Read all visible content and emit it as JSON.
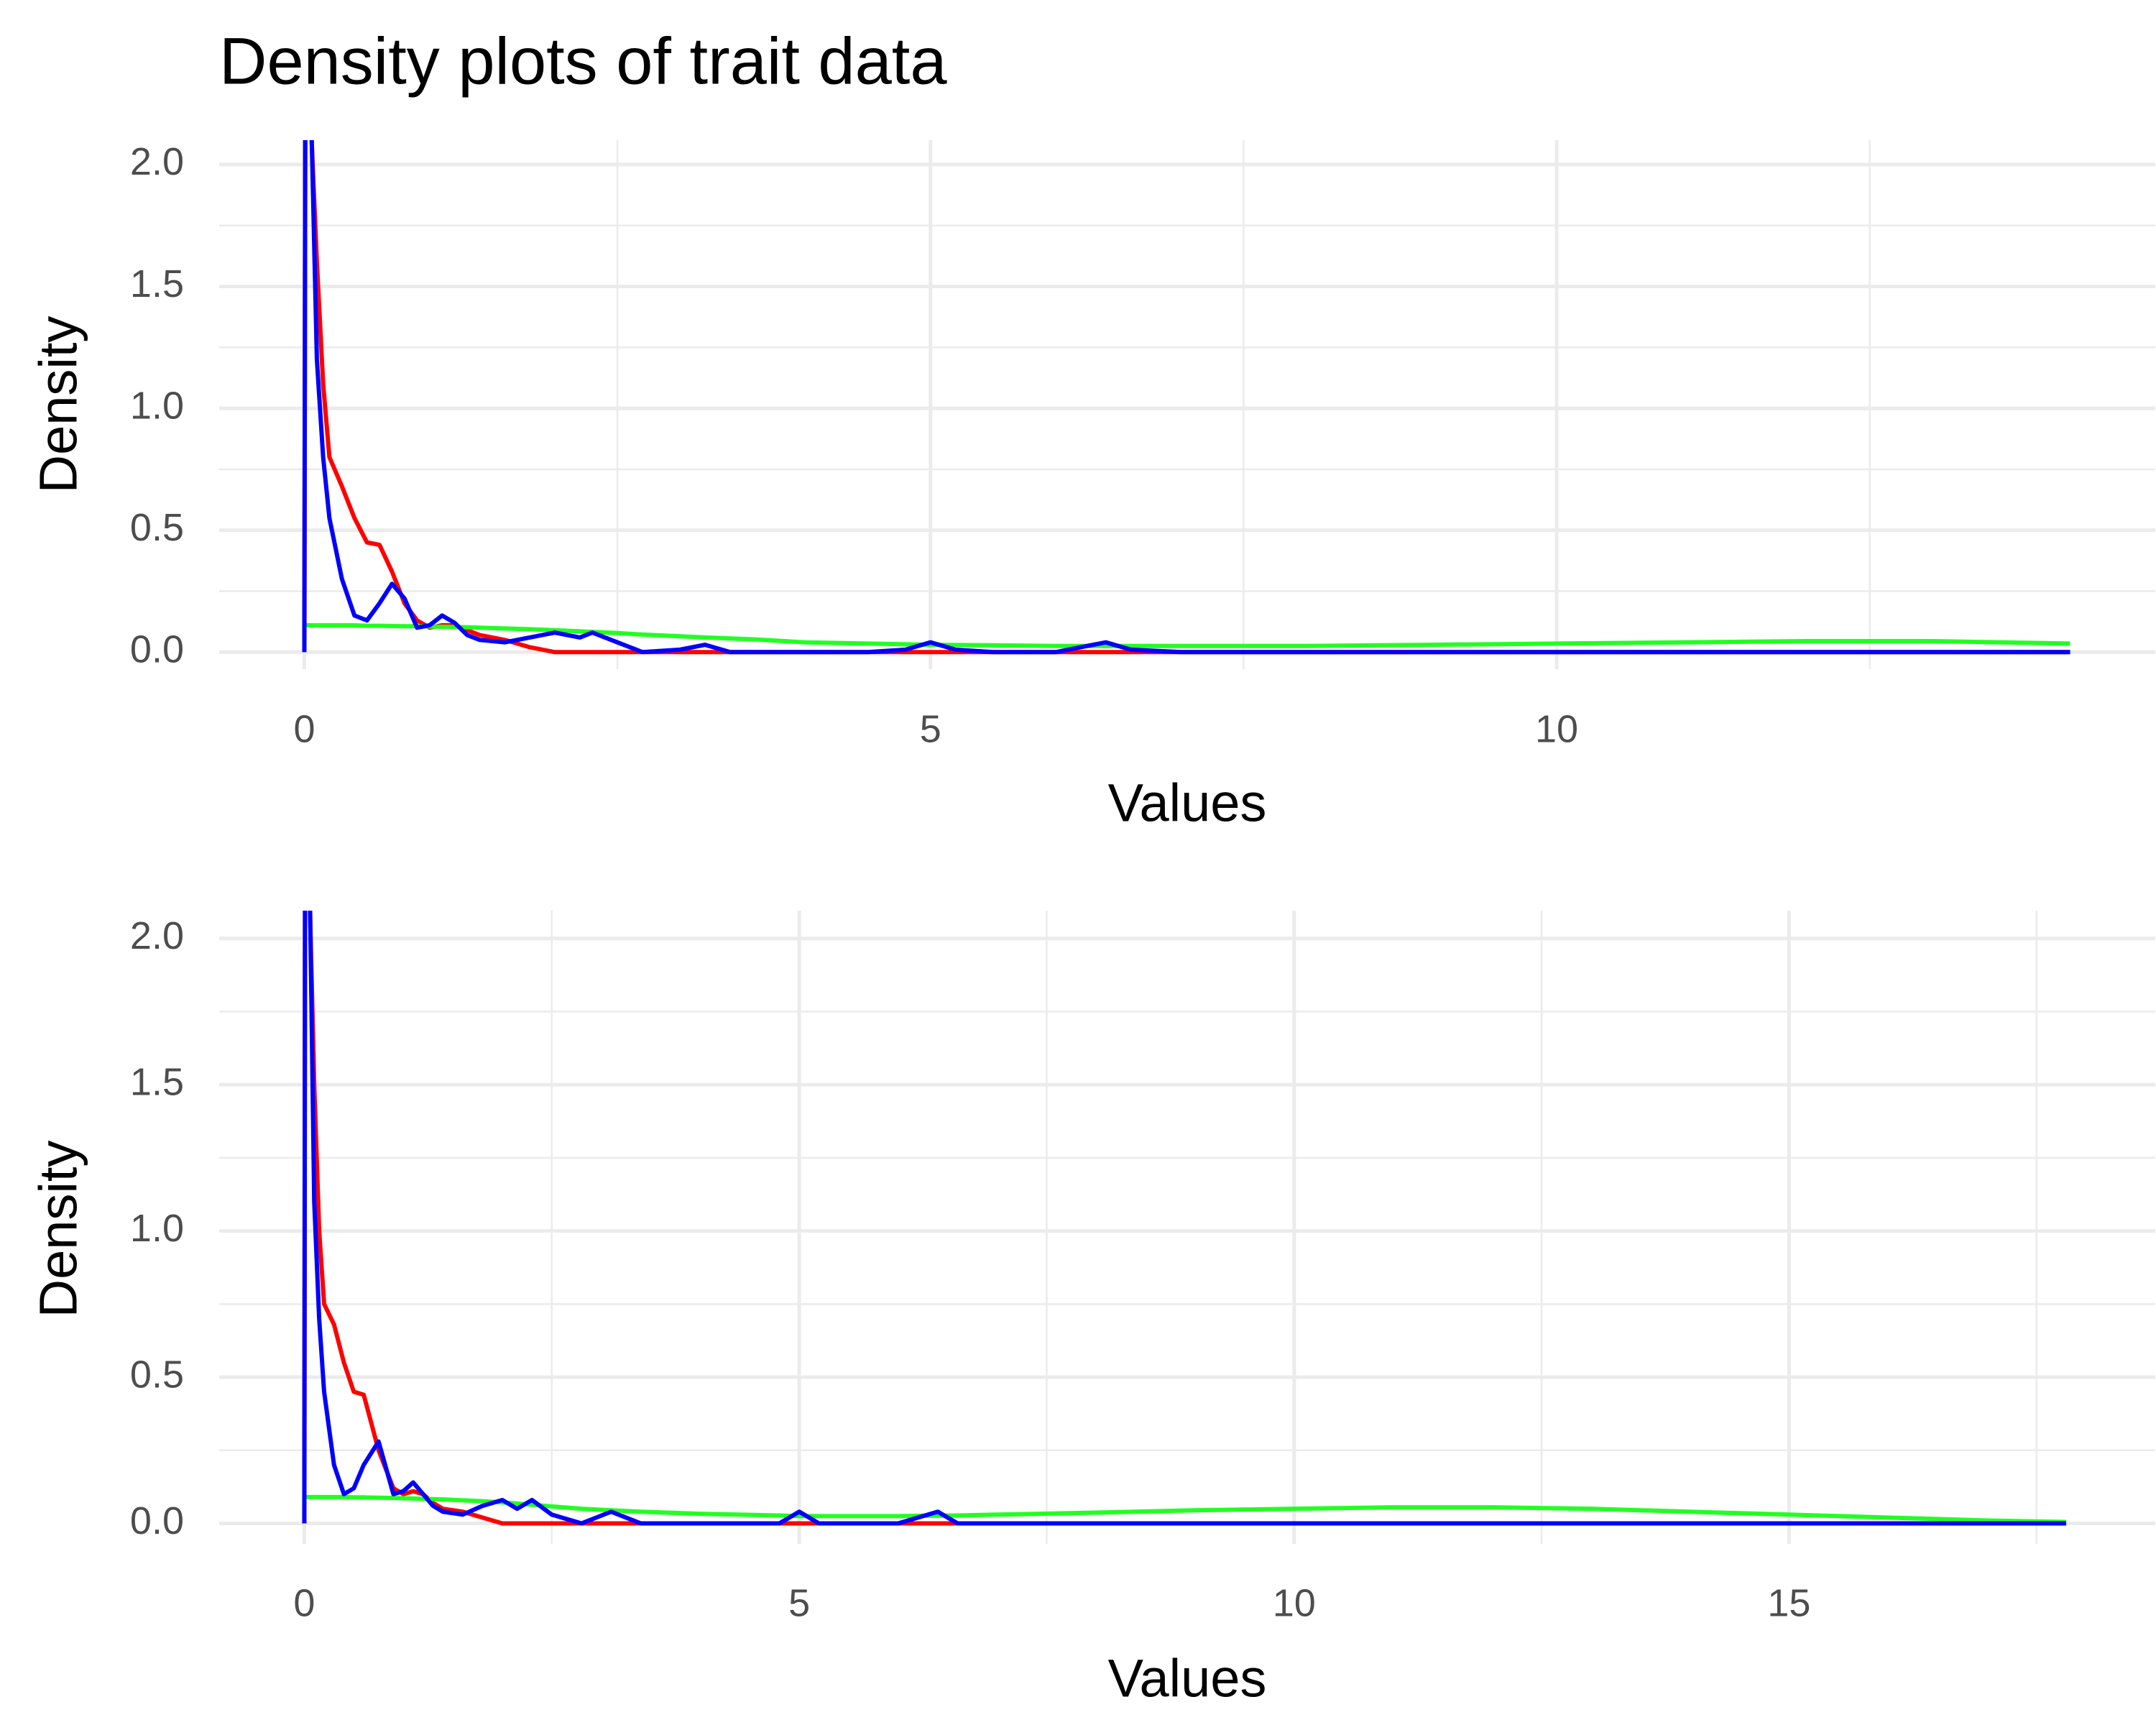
{
  "chart_data": [
    {
      "type": "line",
      "title": "Density plots of trait data",
      "x_label": "Values",
      "y_label": "Density",
      "xlim": [
        -0.68,
        14.78
      ],
      "ylim": [
        -0.07,
        2.1
      ],
      "xticks": [
        0,
        5,
        10
      ],
      "x_minor_ticks": [
        2.5,
        7.5,
        12.5
      ],
      "yticks": [
        {
          "value": 0,
          "label": "0.0"
        },
        0.5,
        {
          "value": 1,
          "label": "1.0"
        },
        1.5,
        {
          "value": 2,
          "label": "2.0"
        }
      ],
      "y_minor_ticks": [
        0.25,
        0.75,
        1.25,
        1.75
      ],
      "grid": true,
      "x": [
        0,
        0.01,
        0.05,
        0.1,
        0.15,
        0.2,
        0.3,
        0.4,
        0.5,
        0.6,
        0.7,
        0.8,
        0.9,
        1.0,
        1.1,
        1.2,
        1.3,
        1.4,
        1.6,
        1.8,
        2.0,
        2.2,
        2.3,
        2.5,
        2.7,
        3.0,
        3.2,
        3.4,
        3.6,
        4.0,
        4.5,
        4.8,
        5.0,
        5.2,
        5.5,
        6.0,
        6.2,
        6.4,
        6.6,
        7.0,
        8.0,
        9.0,
        10.0,
        11.0,
        12.0,
        13.0,
        14.1
      ],
      "series": [
        {
          "color": "#ff0000",
          "values": [
            0,
            3,
            2.2,
            1.6,
            1.1,
            0.8,
            0.68,
            0.55,
            0.45,
            0.44,
            0.33,
            0.2,
            0.13,
            0.1,
            0.11,
            0.11,
            0.09,
            0.07,
            0.05,
            0.02,
            0,
            0,
            0,
            0,
            0,
            0,
            0,
            0,
            0,
            0,
            0,
            0,
            0,
            0,
            0,
            0,
            0,
            0,
            0,
            0,
            0,
            0,
            0,
            0,
            0,
            0,
            0
          ]
        },
        {
          "color": "#22ff22",
          "values": [
            0.11,
            0.11,
            0.11,
            0.11,
            0.11,
            0.11,
            0.11,
            0.11,
            0.108,
            0.108,
            0.107,
            0.106,
            0.106,
            0.105,
            0.104,
            0.103,
            0.102,
            0.1,
            0.097,
            0.094,
            0.09,
            0.085,
            0.083,
            0.078,
            0.072,
            0.065,
            0.06,
            0.056,
            0.052,
            0.04,
            0.035,
            0.032,
            0.03,
            0.029,
            0.028,
            0.025,
            0.025,
            0.025,
            0.025,
            0.025,
            0.025,
            0.03,
            0.035,
            0.04,
            0.045,
            0.045,
            0.035
          ]
        },
        {
          "color": "#0000ff",
          "values": [
            0,
            3,
            2.3,
            1.2,
            0.8,
            0.55,
            0.3,
            0.15,
            0.13,
            0.2,
            0.28,
            0.22,
            0.1,
            0.11,
            0.15,
            0.12,
            0.07,
            0.05,
            0.04,
            0.06,
            0.08,
            0.06,
            0.08,
            0.04,
            0,
            0.01,
            0.03,
            0,
            0,
            0,
            0,
            0.01,
            0.04,
            0.01,
            0,
            0,
            0.02,
            0.04,
            0.01,
            0,
            0,
            0,
            0,
            0,
            0,
            0,
            0
          ]
        }
      ]
    },
    {
      "type": "line",
      "x_label": "Values",
      "y_label": "Density",
      "xlim": [
        -0.86,
        18.7
      ],
      "ylim": [
        -0.07,
        2.095
      ],
      "xticks": [
        0,
        5,
        10,
        15
      ],
      "x_minor_ticks": [
        2.5,
        7.5,
        12.5,
        17.5
      ],
      "yticks": [
        {
          "value": 0,
          "label": "0.0"
        },
        0.5,
        {
          "value": 1,
          "label": "1.0"
        },
        1.5,
        {
          "value": 2,
          "label": "2.0"
        }
      ],
      "y_minor_ticks": [
        0.25,
        0.75,
        1.25,
        1.75
      ],
      "grid": true,
      "x": [
        0,
        0.01,
        0.05,
        0.1,
        0.15,
        0.2,
        0.3,
        0.4,
        0.5,
        0.6,
        0.75,
        0.9,
        1.0,
        1.1,
        1.2,
        1.3,
        1.4,
        1.6,
        1.8,
        2.0,
        2.15,
        2.3,
        2.5,
        2.8,
        3.1,
        3.4,
        4.0,
        4.8,
        5.0,
        5.2,
        6.0,
        6.2,
        6.4,
        6.6,
        7,
        8,
        9,
        10,
        11,
        12,
        13,
        14,
        15,
        16,
        17,
        17.8
      ],
      "series": [
        {
          "color": "#ff0000",
          "values": [
            0,
            3,
            2.2,
            1.5,
            1.0,
            0.75,
            0.68,
            0.55,
            0.45,
            0.44,
            0.25,
            0.12,
            0.1,
            0.11,
            0.1,
            0.07,
            0.05,
            0.04,
            0.02,
            0,
            0,
            0,
            0,
            0,
            0,
            0,
            0,
            0,
            0,
            0,
            0,
            0,
            0,
            0,
            0,
            0,
            0,
            0,
            0,
            0,
            0,
            0,
            0,
            0,
            0,
            0
          ]
        },
        {
          "color": "#22ff22",
          "values": [
            0.09,
            0.09,
            0.09,
            0.09,
            0.09,
            0.09,
            0.09,
            0.09,
            0.089,
            0.089,
            0.088,
            0.087,
            0.086,
            0.085,
            0.084,
            0.083,
            0.082,
            0.079,
            0.076,
            0.072,
            0.068,
            0.064,
            0.058,
            0.05,
            0.045,
            0.04,
            0.033,
            0.027,
            0.025,
            0.025,
            0.025,
            0.026,
            0.026,
            0.027,
            0.03,
            0.037,
            0.045,
            0.05,
            0.055,
            0.055,
            0.05,
            0.04,
            0.03,
            0.02,
            0.01,
            0.005
          ]
        },
        {
          "color": "#0000ff",
          "values": [
            0,
            3,
            2.3,
            1.1,
            0.7,
            0.45,
            0.2,
            0.1,
            0.12,
            0.2,
            0.28,
            0.1,
            0.11,
            0.14,
            0.1,
            0.06,
            0.04,
            0.03,
            0.06,
            0.08,
            0.05,
            0.08,
            0.03,
            0,
            0.04,
            0,
            0,
            0,
            0.04,
            0,
            0,
            0.02,
            0.04,
            0,
            0,
            0,
            0,
            0,
            0,
            0,
            0,
            0,
            0,
            0,
            0,
            0
          ]
        }
      ]
    }
  ]
}
